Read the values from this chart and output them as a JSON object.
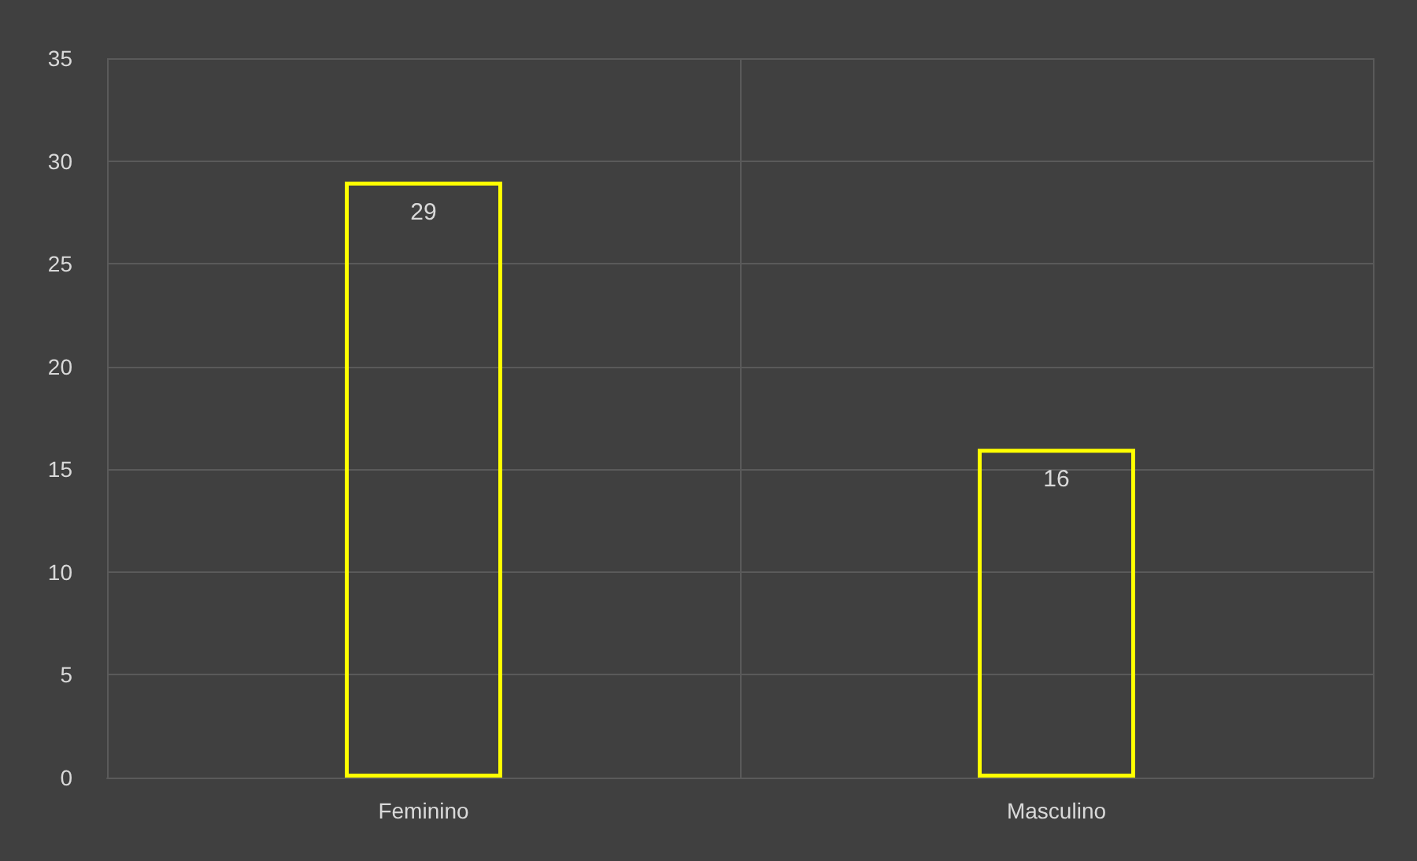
{
  "chart_data": {
    "type": "bar",
    "categories": [
      "Feminino",
      "Masculino"
    ],
    "values": [
      29,
      16
    ],
    "color": "#ffff00",
    "ylim": [
      0,
      35
    ],
    "yticks": [
      0,
      5,
      10,
      15,
      20,
      25,
      30,
      35
    ],
    "grid": true,
    "data_labels": true
  }
}
